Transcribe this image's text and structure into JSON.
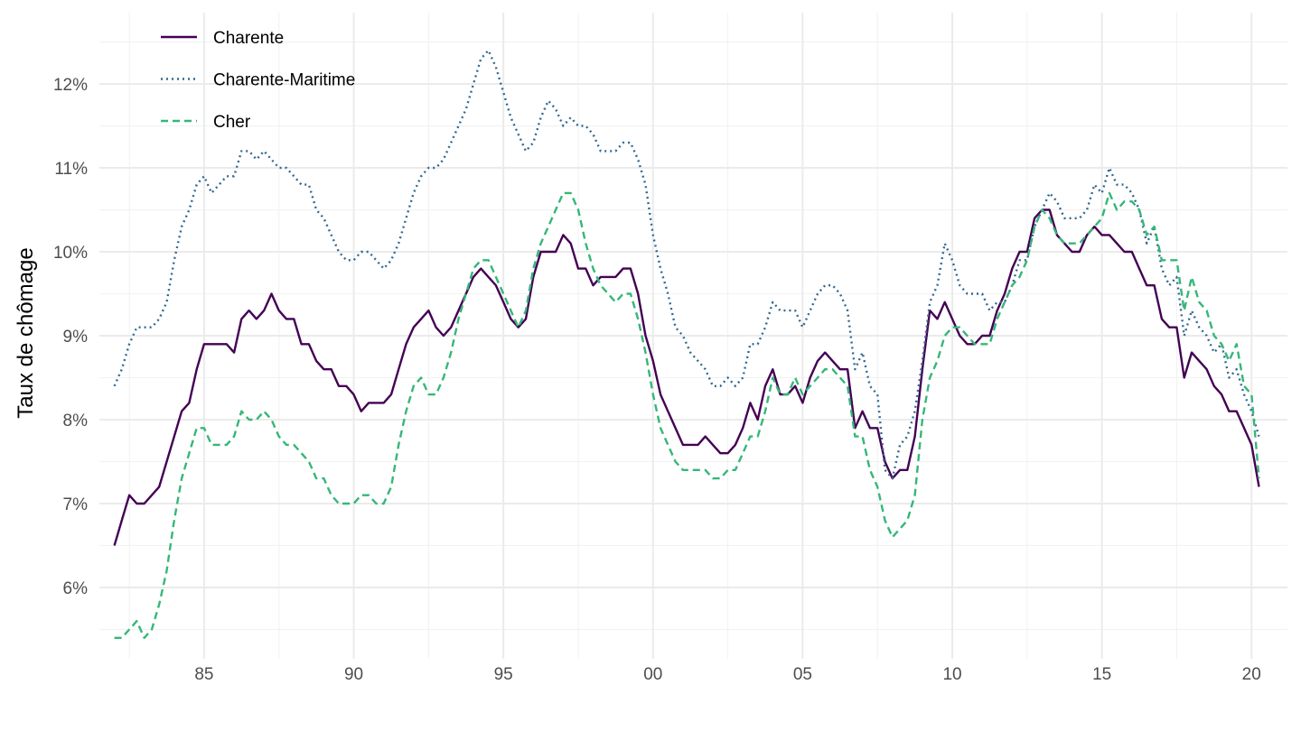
{
  "chart_data": {
    "type": "line",
    "title": "",
    "xlabel": "",
    "ylabel": "Taux de chômage",
    "xlim": [
      1981.5,
      2021.2
    ],
    "ylim": [
      5.15,
      12.85
    ],
    "x_ticks": [
      {
        "value": 1985,
        "label": "85"
      },
      {
        "value": 1990,
        "label": "90"
      },
      {
        "value": 1995,
        "label": "95"
      },
      {
        "value": 2000,
        "label": "00"
      },
      {
        "value": 2005,
        "label": "05"
      },
      {
        "value": 2010,
        "label": "10"
      },
      {
        "value": 2015,
        "label": "15"
      },
      {
        "value": 2020,
        "label": "20"
      }
    ],
    "y_ticks": [
      {
        "value": 6,
        "label": "6%"
      },
      {
        "value": 7,
        "label": "7%"
      },
      {
        "value": 8,
        "label": "8%"
      },
      {
        "value": 9,
        "label": "9%"
      },
      {
        "value": 10,
        "label": "10%"
      },
      {
        "value": 11,
        "label": "11%"
      },
      {
        "value": 12,
        "label": "12%"
      }
    ],
    "grid": true,
    "legend_position": "top-left",
    "x_start": 1982.0,
    "x_step": 0.25,
    "series": [
      {
        "name": "Charente",
        "color": "#440154",
        "dash": "solid",
        "values": [
          6.5,
          6.8,
          7.1,
          7.0,
          7.0,
          7.1,
          7.2,
          7.5,
          7.8,
          8.1,
          8.2,
          8.6,
          8.9,
          8.9,
          8.9,
          8.9,
          8.8,
          9.2,
          9.3,
          9.2,
          9.3,
          9.5,
          9.3,
          9.2,
          9.2,
          8.9,
          8.9,
          8.7,
          8.6,
          8.6,
          8.4,
          8.4,
          8.3,
          8.1,
          8.2,
          8.2,
          8.2,
          8.3,
          8.6,
          8.9,
          9.1,
          9.2,
          9.3,
          9.1,
          9.0,
          9.1,
          9.3,
          9.5,
          9.7,
          9.8,
          9.7,
          9.6,
          9.4,
          9.2,
          9.1,
          9.2,
          9.7,
          10.0,
          10.0,
          10.0,
          10.2,
          10.1,
          9.8,
          9.8,
          9.6,
          9.7,
          9.7,
          9.7,
          9.8,
          9.8,
          9.5,
          9.0,
          8.7,
          8.3,
          8.1,
          7.9,
          7.7,
          7.7,
          7.7,
          7.8,
          7.7,
          7.6,
          7.6,
          7.7,
          7.9,
          8.2,
          8.0,
          8.4,
          8.6,
          8.3,
          8.3,
          8.4,
          8.2,
          8.5,
          8.7,
          8.8,
          8.7,
          8.6,
          8.6,
          7.9,
          8.1,
          7.9,
          7.9,
          7.5,
          7.3,
          7.4,
          7.4,
          7.8,
          8.6,
          9.3,
          9.2,
          9.4,
          9.2,
          9.0,
          8.9,
          8.9,
          9.0,
          9.0,
          9.3,
          9.5,
          9.8,
          10.0,
          10.0,
          10.4,
          10.5,
          10.5,
          10.2,
          10.1,
          10.0,
          10.0,
          10.2,
          10.3,
          10.2,
          10.2,
          10.1,
          10.0,
          10.0,
          9.8,
          9.6,
          9.6,
          9.2,
          9.1,
          9.1,
          8.5,
          8.8,
          8.7,
          8.6,
          8.4,
          8.3,
          8.1,
          8.1,
          7.9,
          7.7,
          7.2
        ]
      },
      {
        "name": "Charente-Maritime",
        "color": "#31688E",
        "dash": "dotted",
        "values": [
          8.4,
          8.6,
          8.9,
          9.1,
          9.1,
          9.1,
          9.2,
          9.4,
          9.9,
          10.3,
          10.5,
          10.8,
          10.9,
          10.7,
          10.8,
          10.9,
          10.9,
          11.2,
          11.2,
          11.1,
          11.2,
          11.1,
          11.0,
          11.0,
          10.9,
          10.8,
          10.8,
          10.5,
          10.4,
          10.2,
          10.0,
          9.9,
          9.9,
          10.0,
          10.0,
          9.9,
          9.8,
          9.9,
          10.1,
          10.4,
          10.7,
          10.9,
          11.0,
          11.0,
          11.1,
          11.3,
          11.5,
          11.7,
          12.0,
          12.3,
          12.4,
          12.2,
          11.9,
          11.6,
          11.4,
          11.2,
          11.3,
          11.6,
          11.8,
          11.7,
          11.5,
          11.6,
          11.5,
          11.5,
          11.4,
          11.2,
          11.2,
          11.2,
          11.3,
          11.3,
          11.1,
          10.8,
          10.2,
          9.8,
          9.5,
          9.1,
          9.0,
          8.8,
          8.7,
          8.6,
          8.4,
          8.4,
          8.5,
          8.4,
          8.5,
          8.9,
          8.9,
          9.1,
          9.4,
          9.3,
          9.3,
          9.3,
          9.1,
          9.3,
          9.5,
          9.6,
          9.6,
          9.5,
          9.3,
          8.6,
          8.8,
          8.4,
          8.3,
          7.4,
          7.3,
          7.7,
          7.8,
          8.1,
          8.7,
          9.4,
          9.6,
          10.1,
          9.9,
          9.6,
          9.5,
          9.5,
          9.5,
          9.3,
          9.4,
          9.4,
          9.6,
          9.9,
          9.9,
          10.3,
          10.5,
          10.7,
          10.6,
          10.4,
          10.4,
          10.4,
          10.5,
          10.8,
          10.7,
          11.0,
          10.8,
          10.8,
          10.7,
          10.5,
          10.1,
          10.3,
          9.8,
          9.6,
          9.7,
          9.0,
          9.3,
          9.1,
          9.0,
          8.8,
          8.9,
          8.5,
          8.6,
          8.3,
          8.1,
          7.8
        ]
      },
      {
        "name": "Cher",
        "color": "#35B779",
        "dash": "dashed",
        "values": [
          5.4,
          5.4,
          5.5,
          5.6,
          5.4,
          5.5,
          5.8,
          6.2,
          6.8,
          7.3,
          7.6,
          7.9,
          7.9,
          7.7,
          7.7,
          7.7,
          7.8,
          8.1,
          8.0,
          8.0,
          8.1,
          8.0,
          7.8,
          7.7,
          7.7,
          7.6,
          7.5,
          7.3,
          7.3,
          7.1,
          7.0,
          7.0,
          7.0,
          7.1,
          7.1,
          7.0,
          7.0,
          7.2,
          7.7,
          8.1,
          8.4,
          8.5,
          8.3,
          8.3,
          8.5,
          8.8,
          9.2,
          9.5,
          9.8,
          9.9,
          9.9,
          9.7,
          9.5,
          9.3,
          9.1,
          9.3,
          9.8,
          10.1,
          10.3,
          10.5,
          10.7,
          10.7,
          10.5,
          10.1,
          9.8,
          9.6,
          9.5,
          9.4,
          9.5,
          9.5,
          9.2,
          8.8,
          8.3,
          7.9,
          7.7,
          7.5,
          7.4,
          7.4,
          7.4,
          7.4,
          7.3,
          7.3,
          7.4,
          7.4,
          7.6,
          7.8,
          7.8,
          8.1,
          8.5,
          8.3,
          8.3,
          8.5,
          8.3,
          8.4,
          8.5,
          8.6,
          8.6,
          8.5,
          8.4,
          7.8,
          7.8,
          7.4,
          7.2,
          6.8,
          6.6,
          6.7,
          6.8,
          7.1,
          8.0,
          8.5,
          8.7,
          9.0,
          9.1,
          9.1,
          9.0,
          8.9,
          8.9,
          8.9,
          9.2,
          9.4,
          9.6,
          9.7,
          9.9,
          10.3,
          10.5,
          10.4,
          10.2,
          10.1,
          10.1,
          10.1,
          10.2,
          10.3,
          10.4,
          10.7,
          10.5,
          10.6,
          10.6,
          10.5,
          10.2,
          10.3,
          9.9,
          9.9,
          9.9,
          9.3,
          9.7,
          9.4,
          9.3,
          9.0,
          8.9,
          8.7,
          8.9,
          8.4,
          8.3,
          7.3
        ]
      }
    ]
  }
}
